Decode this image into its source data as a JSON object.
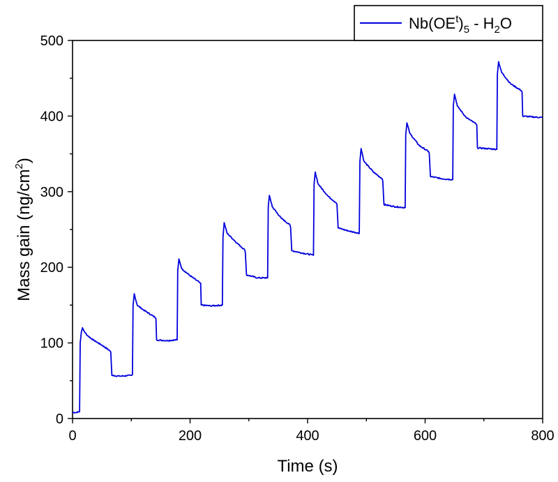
{
  "chart_data": {
    "type": "line",
    "title": "",
    "xlabel": "Time (s)",
    "ylabel_parts": {
      "main": "Mass gain (ng/cm",
      "sup": "2",
      "close": ")"
    },
    "xlim": [
      0,
      800
    ],
    "ylim": [
      0,
      500
    ],
    "x_ticks": [
      0,
      200,
      400,
      600,
      800
    ],
    "y_ticks": [
      0,
      100,
      200,
      300,
      400,
      500
    ],
    "grid": false,
    "legend_position": "top-right",
    "series": [
      {
        "name_parts": {
          "a": "Nb(OE",
          "a_sup": "t",
          "a_close": ")",
          "a_sub": "5",
          "mid": " - H",
          "b_sub": "2",
          "end": "O"
        },
        "color": "#0000dd",
        "points": [
          [
            0,
            8
          ],
          [
            6,
            8
          ],
          [
            12,
            9
          ],
          [
            13,
            100
          ],
          [
            15,
            114
          ],
          [
            17,
            120
          ],
          [
            20,
            115
          ],
          [
            25,
            110
          ],
          [
            35,
            104
          ],
          [
            50,
            97
          ],
          [
            63,
            90
          ],
          [
            65,
            88
          ],
          [
            67,
            57
          ],
          [
            80,
            56
          ],
          [
            100,
            57
          ],
          [
            102,
            58
          ],
          [
            103,
            150
          ],
          [
            105,
            165
          ],
          [
            110,
            150
          ],
          [
            120,
            144
          ],
          [
            140,
            134
          ],
          [
            142,
            132
          ],
          [
            143,
            104
          ],
          [
            160,
            103
          ],
          [
            178,
            104
          ],
          [
            179,
            195
          ],
          [
            181,
            211
          ],
          [
            186,
            198
          ],
          [
            200,
            189
          ],
          [
            216,
            180
          ],
          [
            218,
            179
          ],
          [
            219,
            150
          ],
          [
            235,
            149
          ],
          [
            255,
            150
          ],
          [
            256,
            240
          ],
          [
            258,
            259
          ],
          [
            263,
            245
          ],
          [
            280,
            232
          ],
          [
            293,
            223
          ],
          [
            294,
            220
          ],
          [
            296,
            190
          ],
          [
            315,
            186
          ],
          [
            332,
            186
          ],
          [
            333,
            280
          ],
          [
            335,
            295
          ],
          [
            340,
            280
          ],
          [
            355,
            265
          ],
          [
            370,
            256
          ],
          [
            371,
            253
          ],
          [
            373,
            222
          ],
          [
            390,
            219
          ],
          [
            410,
            216
          ],
          [
            411,
            310
          ],
          [
            413,
            326
          ],
          [
            418,
            310
          ],
          [
            435,
            294
          ],
          [
            449,
            285
          ],
          [
            450,
            283
          ],
          [
            452,
            252
          ],
          [
            470,
            248
          ],
          [
            488,
            245
          ],
          [
            489,
            340
          ],
          [
            491,
            357
          ],
          [
            496,
            340
          ],
          [
            512,
            326
          ],
          [
            527,
            317
          ],
          [
            528,
            314
          ],
          [
            530,
            283
          ],
          [
            550,
            280
          ],
          [
            566,
            279
          ],
          [
            567,
            375
          ],
          [
            569,
            391
          ],
          [
            574,
            377
          ],
          [
            590,
            361
          ],
          [
            606,
            353
          ],
          [
            607,
            351
          ],
          [
            609,
            320
          ],
          [
            630,
            317
          ],
          [
            647,
            316
          ],
          [
            648,
            413
          ],
          [
            650,
            429
          ],
          [
            655,
            413
          ],
          [
            670,
            398
          ],
          [
            686,
            390
          ],
          [
            688,
            388
          ],
          [
            689,
            358
          ],
          [
            705,
            357
          ],
          [
            722,
            356
          ],
          [
            723,
            455
          ],
          [
            725,
            472
          ],
          [
            730,
            458
          ],
          [
            745,
            443
          ],
          [
            763,
            434
          ],
          [
            765,
            432
          ],
          [
            766,
            400
          ],
          [
            780,
            399
          ],
          [
            800,
            398
          ]
        ]
      }
    ]
  }
}
